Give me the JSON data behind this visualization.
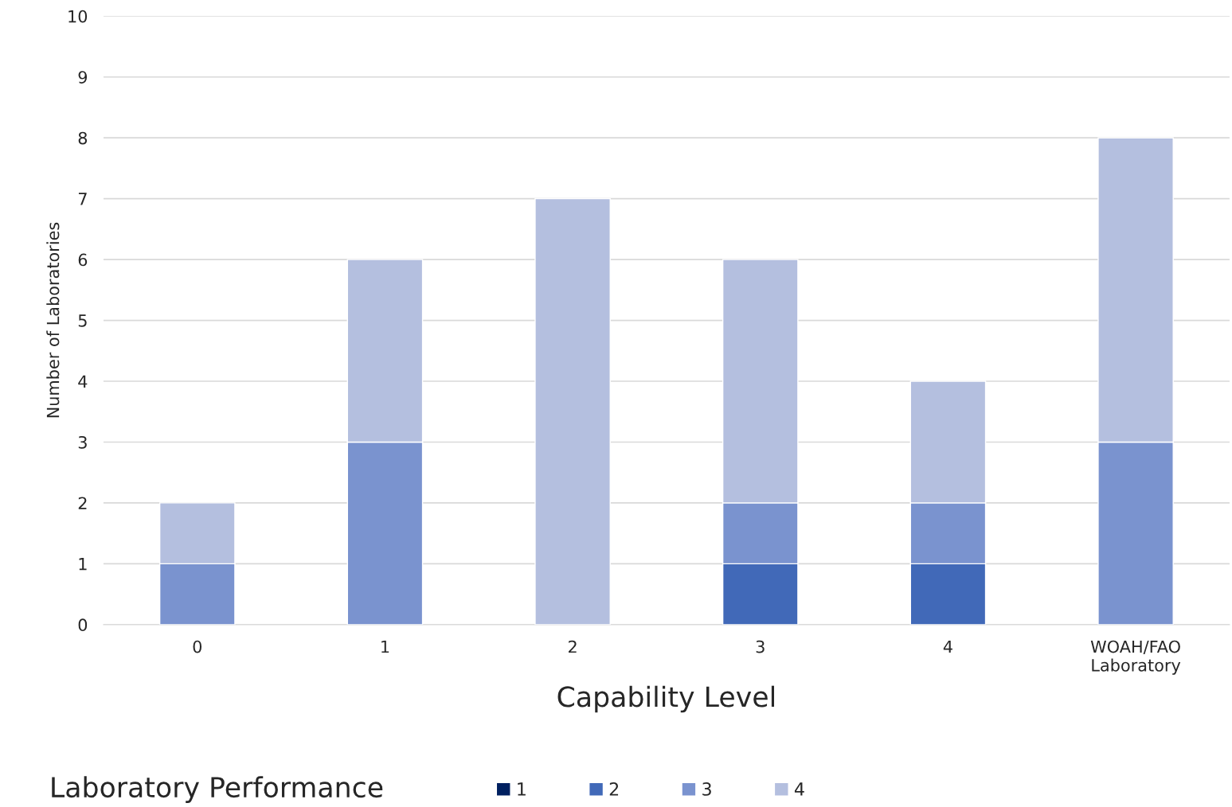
{
  "chart_data": {
    "type": "bar",
    "stacked": true,
    "xlabel": "Capability Level",
    "ylabel": "Number of Laboratories",
    "legend_title": "Laboratory Performance",
    "legend": "bottom",
    "categories": [
      "0",
      "1",
      "2",
      "3",
      "4",
      "WOAH/FAO\nLaboratory"
    ],
    "series": [
      {
        "name": "1",
        "color": "#002060",
        "values": [
          0,
          0,
          0,
          0,
          0,
          0
        ]
      },
      {
        "name": "2",
        "color": "#4169b8",
        "values": [
          0,
          0,
          0,
          1,
          1,
          0
        ]
      },
      {
        "name": "3",
        "color": "#7a93cf",
        "values": [
          1,
          3,
          0,
          1,
          1,
          3
        ]
      },
      {
        "name": "4",
        "color": "#b4bfdf",
        "values": [
          1,
          3,
          7,
          4,
          2,
          5
        ]
      }
    ],
    "ylim": [
      0,
      10
    ],
    "yticks": [
      0,
      1,
      2,
      3,
      4,
      5,
      6,
      7,
      8,
      9,
      10
    ],
    "grid": "y"
  }
}
